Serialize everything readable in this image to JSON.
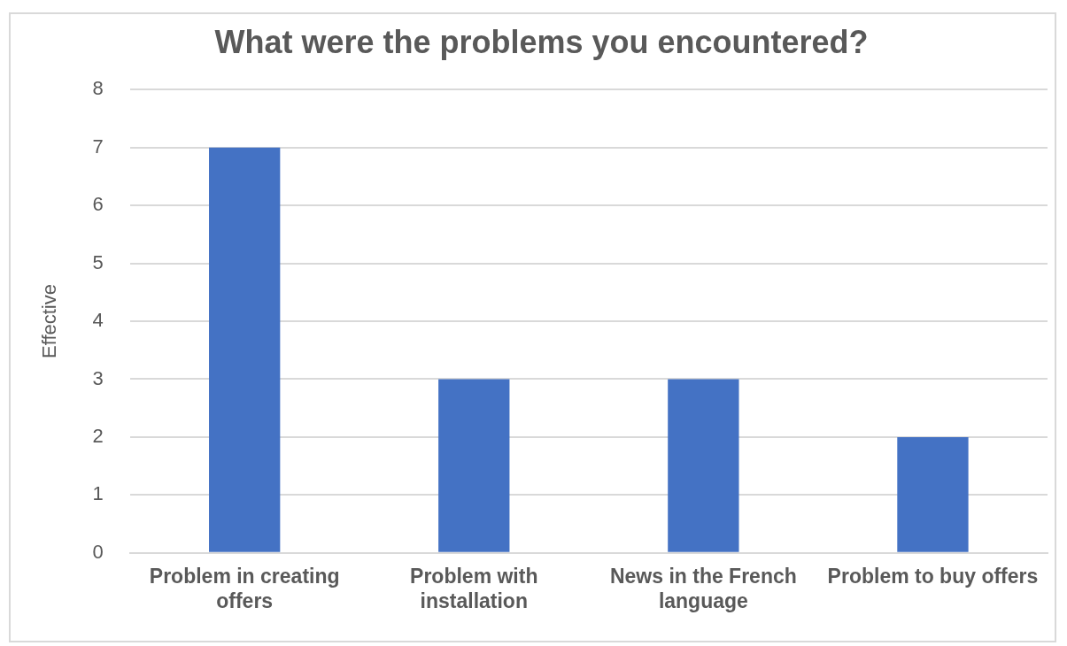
{
  "chart_data": {
    "type": "bar",
    "title": "What were the problems you encountered?",
    "ylabel": "Effective",
    "categories": [
      "Problem in creating offers",
      "Problem with installation",
      "News in the French language",
      "Problem to buy offers"
    ],
    "values": [
      7,
      3,
      3,
      2
    ],
    "color": "#4472c4",
    "ylim": [
      0,
      8
    ],
    "yticks": [
      0,
      1,
      2,
      3,
      4,
      5,
      6,
      7,
      8
    ],
    "grid": "y",
    "legend": false
  }
}
